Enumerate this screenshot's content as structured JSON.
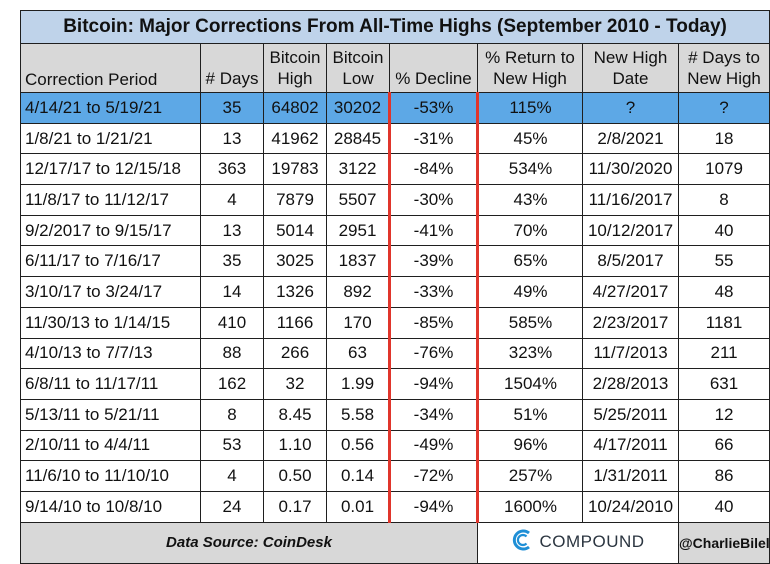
{
  "chart_data": {
    "type": "table",
    "title": "Bitcoin: Major Corrections From All-Time Highs (September 2010 - Today)",
    "columns": [
      "Correction Period",
      "# Days",
      "Bitcoin High",
      "Bitcoin Low",
      "% Decline",
      "% Return to New High",
      "New High Date",
      "# Days to New High"
    ],
    "header_lines": [
      [
        "",
        "Correction Period"
      ],
      [
        "",
        "# Days"
      ],
      [
        "Bitcoin",
        "High"
      ],
      [
        "Bitcoin",
        "Low"
      ],
      [
        "",
        "% Decline"
      ],
      [
        "% Return to",
        "New High"
      ],
      [
        "New High",
        "Date"
      ],
      [
        "# Days to",
        "New High"
      ]
    ],
    "rows": [
      [
        "4/14/21 to 5/19/21",
        "35",
        "64802",
        "30202",
        "-53%",
        "115%",
        "?",
        "?"
      ],
      [
        "1/8/21 to 1/21/21",
        "13",
        "41962",
        "28845",
        "-31%",
        "45%",
        "2/8/2021",
        "18"
      ],
      [
        "12/17/17 to 12/15/18",
        "363",
        "19783",
        "3122",
        "-84%",
        "534%",
        "11/30/2020",
        "1079"
      ],
      [
        "11/8/17 to 11/12/17",
        "4",
        "7879",
        "5507",
        "-30%",
        "43%",
        "11/16/2017",
        "8"
      ],
      [
        "9/2/2017 to 9/15/17",
        "13",
        "5014",
        "2951",
        "-41%",
        "70%",
        "10/12/2017",
        "40"
      ],
      [
        "6/11/17 to 7/16/17",
        "35",
        "3025",
        "1837",
        "-39%",
        "65%",
        "8/5/2017",
        "55"
      ],
      [
        "3/10/17 to 3/24/17",
        "14",
        "1326",
        "892",
        "-33%",
        "49%",
        "4/27/2017",
        "48"
      ],
      [
        "11/30/13 to 1/14/15",
        "410",
        "1166",
        "170",
        "-85%",
        "585%",
        "2/23/2017",
        "1181"
      ],
      [
        "4/10/13 to 7/7/13",
        "88",
        "266",
        "63",
        "-76%",
        "323%",
        "11/7/2013",
        "211"
      ],
      [
        "6/8/11 to 11/17/11",
        "162",
        "32",
        "1.99",
        "-94%",
        "1504%",
        "2/28/2013",
        "631"
      ],
      [
        "5/13/11 to 5/21/11",
        "8",
        "8.45",
        "5.58",
        "-34%",
        "51%",
        "5/25/2011",
        "12"
      ],
      [
        "2/10/11 to 4/4/11",
        "53",
        "1.10",
        "0.56",
        "-49%",
        "96%",
        "4/17/2011",
        "66"
      ],
      [
        "11/6/10 to 11/10/10",
        "4",
        "0.50",
        "0.14",
        "-72%",
        "257%",
        "1/31/2011",
        "86"
      ],
      [
        "9/14/10 to 10/8/10",
        "24",
        "0.17",
        "0.01",
        "-94%",
        "1600%",
        "10/24/2010",
        "40"
      ]
    ],
    "highlighted_row": 0
  },
  "footer": {
    "source": "Data Source: CoinDesk",
    "brand": "COMPOUND",
    "handle": "@CharlieBilello"
  },
  "colors": {
    "title_bg": "#bfd3ea",
    "header_bg": "#d8d8d8",
    "highlight_row": "#5da8e6",
    "decline_border": "#e0352b",
    "logo_blue": "#1f8fd6"
  },
  "icons": {
    "brand_logo": "compound-logo-icon"
  }
}
